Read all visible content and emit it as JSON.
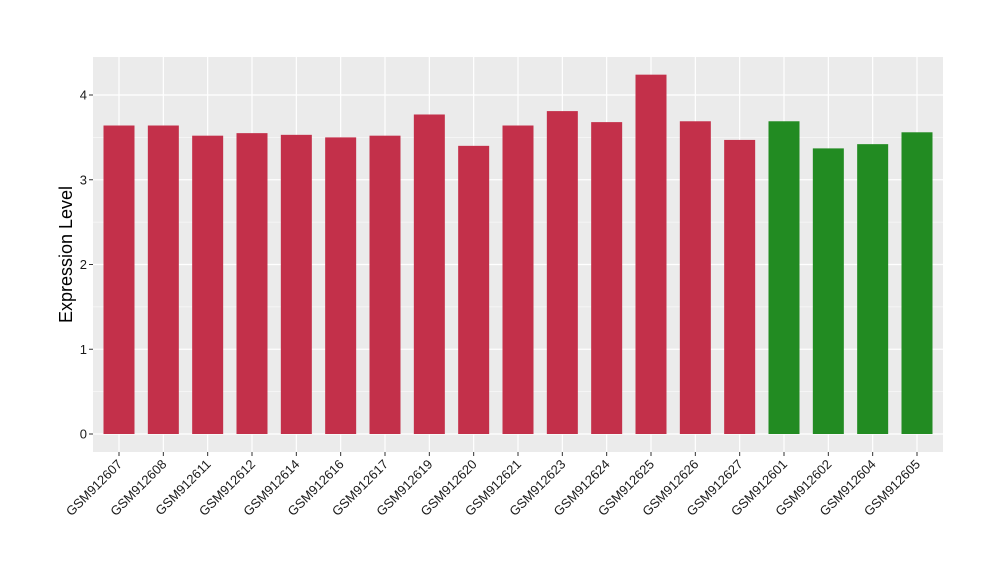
{
  "chart_data": {
    "type": "bar",
    "title": "",
    "xlabel": "",
    "ylabel": "Expression Level",
    "ylim": [
      0,
      4.4
    ],
    "yticks": [
      0,
      1,
      2,
      3,
      4
    ],
    "ytick_labels": [
      "0",
      "1",
      "2",
      "3",
      "4"
    ],
    "grid": true,
    "legend": "none",
    "categories": [
      "GSM912607",
      "GSM912608",
      "GSM912611",
      "GSM912612",
      "GSM912614",
      "GSM912616",
      "GSM912617",
      "GSM912619",
      "GSM912620",
      "GSM912621",
      "GSM912623",
      "GSM912624",
      "GSM912625",
      "GSM912626",
      "GSM912627",
      "GSM912601",
      "GSM912602",
      "GSM912604",
      "GSM912605"
    ],
    "values": [
      3.64,
      3.64,
      3.52,
      3.55,
      3.53,
      3.5,
      3.52,
      3.77,
      3.4,
      3.64,
      3.81,
      3.68,
      4.24,
      3.69,
      3.47,
      3.69,
      3.37,
      3.42,
      3.56
    ],
    "groups": [
      "red",
      "red",
      "red",
      "red",
      "red",
      "red",
      "red",
      "red",
      "red",
      "red",
      "red",
      "red",
      "red",
      "red",
      "red",
      "green",
      "green",
      "green",
      "green"
    ],
    "colors": {
      "red": "#C3304A",
      "green": "#228B22",
      "panel_background": "#EBEBEB",
      "grid_line": "#FFFFFF"
    }
  }
}
